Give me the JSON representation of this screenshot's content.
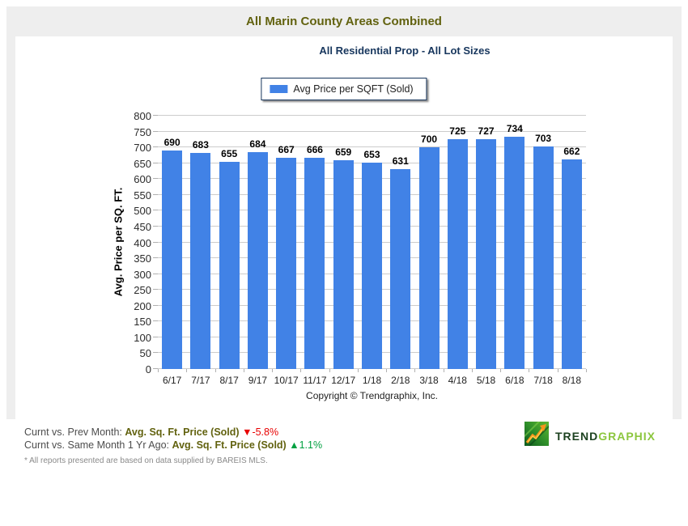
{
  "header": {
    "title": "All Marin County Areas Combined"
  },
  "chart": {
    "subtitle": "All Residential Prop - All Lot Sizes",
    "legend_label": "Avg Price per SQFT (Sold)",
    "y_axis_title": "Avg. Price per SQ. FT.",
    "copyright": "Copyright © Trendgraphix, Inc."
  },
  "chart_data": {
    "type": "bar",
    "title": "All Marin County Areas Combined",
    "subtitle": "All Residential Prop - All Lot Sizes",
    "series_name": "Avg Price per SQFT (Sold)",
    "categories": [
      "6/17",
      "7/17",
      "8/17",
      "9/17",
      "10/17",
      "11/17",
      "12/17",
      "1/18",
      "2/18",
      "3/18",
      "4/18",
      "5/18",
      "6/18",
      "7/18",
      "8/18"
    ],
    "values": [
      690,
      683,
      655,
      684,
      667,
      666,
      659,
      653,
      631,
      700,
      725,
      727,
      734,
      703,
      662
    ],
    "xlabel": "",
    "ylabel": "Avg. Price per SQ. FT.",
    "ylim": [
      0,
      800
    ],
    "ytick_step": 50,
    "grid": true,
    "legend_position": "top",
    "bar_color": "#4182e6"
  },
  "footer": {
    "row1_label": "Curnt vs. Prev Month: ",
    "row1_metric": "Avg. Sq. Ft. Price (Sold) ",
    "row1_arrow": "▼",
    "row1_value": "-5.8%",
    "row2_label": "Curnt vs. Same Month 1 Yr Ago: ",
    "row2_metric": "Avg. Sq. Ft. Price (Sold) ",
    "row2_arrow": "▲",
    "row2_value": "1.1%",
    "disclaimer": "* All reports presented are based on data supplied by BAREIS MLS.",
    "logo_trend": "TREND",
    "logo_graphix": "GRAPHIX"
  },
  "colors": {
    "title_text": "#62620f",
    "subtitle_text": "#17365d",
    "bar": "#4182e6",
    "gridline": "#cccccc",
    "down": "#e80000",
    "up": "#00a040",
    "panel_bg": "#eeeeee"
  }
}
